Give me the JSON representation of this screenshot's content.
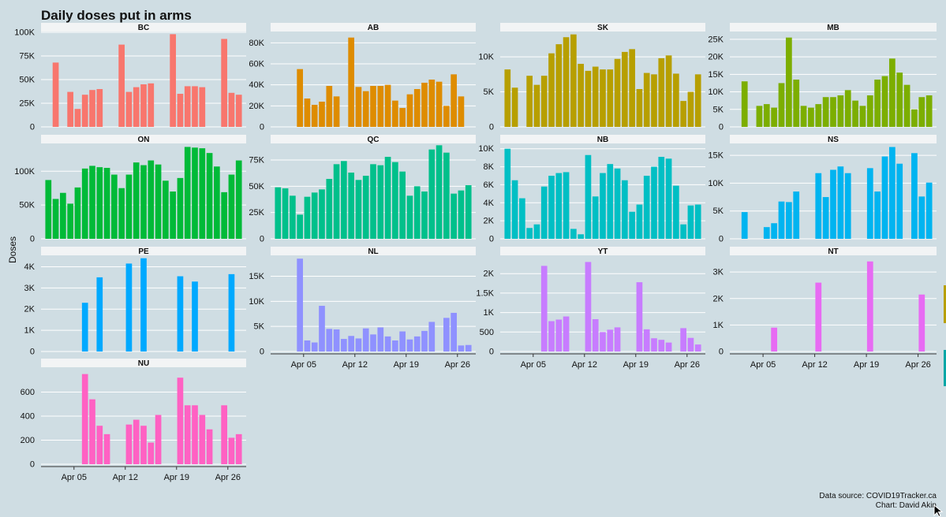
{
  "title": "Daily doses put in arms",
  "ylabel": "Doses",
  "source": "Data source: COVID19Tracker.ca",
  "credit": "Chart: David Akin",
  "chart_data": {
    "type": "bar",
    "facet_layout": "4 columns, free y scales",
    "x_start": "2021-04-01",
    "x_ticks": [
      "Apr 05",
      "Apr 12",
      "Apr 19",
      "Apr 26"
    ],
    "x_tick_days": [
      5,
      12,
      19,
      26
    ],
    "grid": true,
    "legend": "none",
    "panels": [
      {
        "name": "BC",
        "color": "#f8766d",
        "ylim": [
          0,
          100000
        ],
        "yticks": [
          0,
          25000,
          50000,
          75000,
          100000
        ],
        "yticklabels": [
          "0",
          "25K",
          "50K",
          "75K",
          "100K"
        ],
        "values": [
          0,
          68000,
          0,
          37000,
          19000,
          34000,
          39000,
          40000,
          0,
          0,
          87000,
          37000,
          42000,
          45000,
          46000,
          0,
          0,
          98000,
          35000,
          43000,
          43000,
          42000,
          0,
          0,
          93000,
          36000,
          34000
        ]
      },
      {
        "name": "AB",
        "color": "#de8c00",
        "ylim": [
          0,
          90000
        ],
        "yticks": [
          0,
          20000,
          40000,
          60000,
          80000
        ],
        "yticklabels": [
          "0",
          "20K",
          "40K",
          "60K",
          "80K"
        ],
        "values": [
          0,
          0,
          0,
          55000,
          27000,
          21000,
          24000,
          39000,
          29000,
          0,
          85000,
          38000,
          34000,
          39000,
          39000,
          40000,
          25000,
          18000,
          31000,
          36000,
          42000,
          45000,
          43000,
          20000,
          50000,
          29000
        ]
      },
      {
        "name": "SK",
        "color": "#b79f00",
        "ylim": [
          0,
          13500
        ],
        "yticks": [
          0,
          5000,
          10000
        ],
        "yticklabels": [
          "0",
          "5K",
          "10K"
        ],
        "values": [
          8200,
          5600,
          0,
          7300,
          6000,
          7300,
          10500,
          11800,
          12800,
          13200,
          9000,
          8000,
          8600,
          8200,
          8200,
          9700,
          10700,
          11100,
          5400,
          7700,
          7500,
          9800,
          10200,
          7600,
          3700,
          5000,
          7500
        ]
      },
      {
        "name": "MB",
        "color": "#7cae00",
        "ylim": [
          0,
          27000
        ],
        "yticks": [
          0,
          5000,
          10000,
          15000,
          20000,
          25000
        ],
        "yticklabels": [
          "0",
          "5K",
          "10K",
          "15K",
          "20K",
          "25K"
        ],
        "values": [
          0,
          13000,
          0,
          6000,
          6500,
          5500,
          12500,
          25500,
          13500,
          6000,
          5500,
          6500,
          8500,
          8500,
          9000,
          10500,
          7500,
          6000,
          9000,
          13500,
          14500,
          19500,
          15500,
          12000,
          5000,
          8500,
          9000
        ]
      },
      {
        "name": "ON",
        "color": "#00ba38",
        "ylim": [
          0,
          140000
        ],
        "yticks": [
          0,
          50000,
          100000
        ],
        "yticklabels": [
          "0",
          "50K",
          "100K"
        ],
        "values": [
          87000,
          59000,
          68000,
          52000,
          76000,
          104000,
          108000,
          106000,
          105000,
          95000,
          75000,
          95000,
          113000,
          109000,
          116000,
          110000,
          86000,
          70000,
          90000,
          136000,
          135000,
          134000,
          127000,
          107000,
          69000,
          95000,
          116000
        ]
      },
      {
        "name": "QC",
        "color": "#00c08b",
        "ylim": [
          0,
          90000
        ],
        "yticks": [
          0,
          25000,
          50000,
          75000
        ],
        "yticklabels": [
          "0",
          "25K",
          "50K",
          "75K"
        ],
        "values": [
          49000,
          48000,
          41000,
          23000,
          40000,
          44000,
          47000,
          57000,
          71000,
          74000,
          63000,
          56000,
          60000,
          71000,
          70000,
          78000,
          73000,
          64000,
          41000,
          50000,
          45000,
          85000,
          89000,
          82000,
          43000,
          46000,
          51000
        ]
      },
      {
        "name": "NB",
        "color": "#00bfc4",
        "ylim": [
          0,
          10500
        ],
        "yticks": [
          0,
          2000,
          4000,
          6000,
          8000,
          10000
        ],
        "yticklabels": [
          "0",
          "2K",
          "4K",
          "6K",
          "8K",
          "10K"
        ],
        "values": [
          10000,
          6500,
          4500,
          1200,
          1600,
          5800,
          7000,
          7300,
          7400,
          1100,
          500,
          9300,
          4700,
          7300,
          8300,
          7800,
          6500,
          3000,
          3800,
          7000,
          8000,
          9100,
          8900,
          5900,
          1600,
          3700,
          3800
        ]
      },
      {
        "name": "NS",
        "color": "#00b4f0",
        "ylim": [
          0,
          17000
        ],
        "yticks": [
          0,
          5000,
          10000,
          15000
        ],
        "yticklabels": [
          "0",
          "5K",
          "10K",
          "15K"
        ],
        "values": [
          0,
          4800,
          0,
          0,
          2100,
          2800,
          6700,
          6600,
          8500,
          0,
          0,
          11800,
          7500,
          12400,
          13000,
          11800,
          0,
          0,
          12700,
          8500,
          14800,
          16500,
          13500,
          0,
          15400,
          7600,
          10100
        ]
      },
      {
        "name": "PE",
        "color": "#00a9ff",
        "ylim": [
          0,
          4500
        ],
        "yticks": [
          0,
          1000,
          2000,
          3000,
          4000
        ],
        "yticklabels": [
          "0",
          "1K",
          "2K",
          "3K",
          "4K"
        ],
        "values": [
          0,
          0,
          0,
          0,
          0,
          2300,
          0,
          3500,
          0,
          0,
          0,
          4150,
          0,
          4400,
          0,
          0,
          0,
          0,
          3550,
          0,
          3300,
          0,
          0,
          0,
          0,
          3650,
          0
        ]
      },
      {
        "name": "NL",
        "color": "#8f91ff",
        "ylim": [
          0,
          19000
        ],
        "yticks": [
          0,
          5000,
          10000,
          15000
        ],
        "yticklabels": [
          "0",
          "5K",
          "10K",
          "15K"
        ],
        "values": [
          0,
          0,
          0,
          18500,
          2200,
          1800,
          9100,
          4500,
          4400,
          2500,
          3100,
          2600,
          4600,
          3400,
          4800,
          3000,
          2200,
          4000,
          2400,
          3000,
          4100,
          5900,
          0,
          6700,
          7700,
          1200,
          1300
        ]
      },
      {
        "name": "YT",
        "color": "#c77cff",
        "ylim": [
          0,
          2450
        ],
        "yticks": [
          0,
          500,
          1000,
          1500,
          2000
        ],
        "yticklabels": [
          "0",
          "500",
          "1K",
          "1.5K",
          "2K"
        ],
        "values": [
          0,
          0,
          0,
          0,
          0,
          2200,
          780,
          820,
          900,
          0,
          0,
          2300,
          830,
          500,
          560,
          620,
          0,
          0,
          1780,
          570,
          340,
          300,
          230,
          0,
          600,
          350,
          180
        ]
      },
      {
        "name": "NT",
        "color": "#e76bf3",
        "ylim": [
          0,
          3600
        ],
        "yticks": [
          0,
          1000,
          2000,
          3000
        ],
        "yticklabels": [
          "0",
          "1K",
          "2K",
          "3K"
        ],
        "values": [
          0,
          0,
          0,
          0,
          0,
          900,
          0,
          0,
          0,
          0,
          0,
          2600,
          0,
          0,
          0,
          0,
          0,
          0,
          3400,
          0,
          0,
          0,
          0,
          0,
          0,
          2150,
          0
        ]
      },
      {
        "name": "NU",
        "color": "#ff61c3",
        "ylim": [
          0,
          800
        ],
        "yticks": [
          0,
          200,
          400,
          600
        ],
        "yticklabels": [
          "0",
          "200",
          "400",
          "600"
        ],
        "values": [
          0,
          0,
          0,
          0,
          0,
          750,
          540,
          320,
          250,
          0,
          0,
          330,
          370,
          320,
          180,
          410,
          0,
          0,
          720,
          490,
          490,
          410,
          290,
          0,
          490,
          220,
          250
        ]
      }
    ]
  }
}
